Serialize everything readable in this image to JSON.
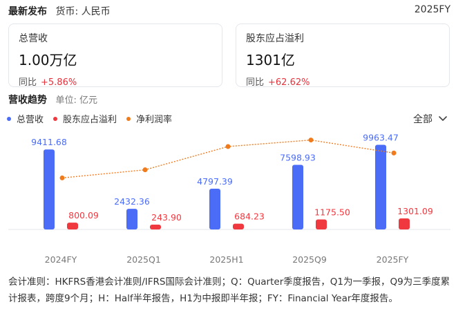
{
  "header": {
    "title": "最新发布",
    "currency": "货币: 人民币",
    "period": "2025FY"
  },
  "cards": [
    {
      "label": "总营收",
      "value": "1.00万亿",
      "yoy_label": "同比",
      "yoy_value": "+5.86%"
    },
    {
      "label": "股东应占溢利",
      "value": "1301亿",
      "yoy_label": "同比",
      "yoy_value": "+62.62%"
    }
  ],
  "trend": {
    "title": "营收趋势",
    "unit": "单位: 亿元"
  },
  "legend": [
    {
      "label": "总营收",
      "color": "#4a6cf7"
    },
    {
      "label": "股东应占溢利",
      "color": "#f0383f"
    },
    {
      "label": "净利润率",
      "color": "#f07b1d"
    }
  ],
  "filter": {
    "label": "全部",
    "icon": "chevron-down-icon"
  },
  "chart_data": {
    "type": "bar",
    "categories": [
      "2024FY",
      "2025Q1",
      "2025H1",
      "2025Q9",
      "2025FY"
    ],
    "series": [
      {
        "name": "总营收",
        "values": [
          9411.68,
          2432.36,
          4797.39,
          7598.93,
          9963.47
        ],
        "labels": [
          "9411.68",
          "2432.36",
          "4797.39",
          "7598.93",
          "9963.47"
        ],
        "color": "#4a6cf7"
      },
      {
        "name": "股东应占溢利",
        "values": [
          800.09,
          243.9,
          684.23,
          1175.5,
          1301.09
        ],
        "labels": [
          "800.09",
          "243.90",
          "684.23",
          "1175.50",
          "1301.09"
        ],
        "color": "#f0383f"
      },
      {
        "name": "净利润率",
        "type": "line",
        "values": [
          8.5,
          10.0,
          14.3,
          15.5,
          13.1
        ],
        "color": "#f07b1d"
      }
    ],
    "grid": false,
    "legend_position": "top-left"
  },
  "note": "会计准则：HKFRS香港会计准则/IFRS国际会计准则；Q：Quarter季度报告，Q1为一季报，Q9为三季度累计报表，跨度9个月；H：Half半年报告，H1为中报即半年报；FY：Financial Year年度报告。"
}
